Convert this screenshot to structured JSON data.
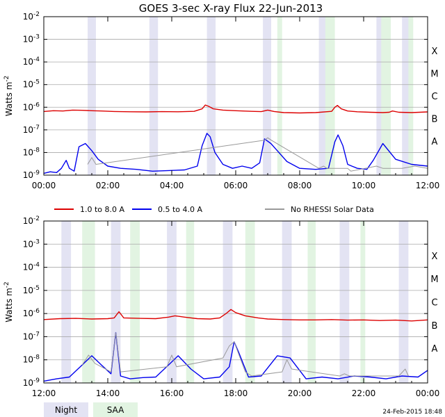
{
  "chart_data": {
    "type": "line",
    "title": "GOES 3-sec X-ray Flux   22-Jun-2013",
    "ylabel": "Watts m",
    "ylabel_sup": "-2",
    "ylim_exponents": [
      -9,
      -2
    ],
    "yticks": [
      "10",
      "10",
      "10",
      "10",
      "10",
      "10",
      "10",
      "10"
    ],
    "ytick_exponents": [
      "-9",
      "-8",
      "-7",
      "-6",
      "-5",
      "-4",
      "-3",
      "-2"
    ],
    "flare_classes": [
      {
        "label": "A",
        "exp": -8
      },
      {
        "label": "B",
        "exp": -7
      },
      {
        "label": "C",
        "exp": -6
      },
      {
        "label": "M",
        "exp": -5
      },
      {
        "label": "X",
        "exp": -4
      }
    ],
    "grid": true,
    "colors": {
      "long": "#dd0000",
      "short": "#0000ee",
      "norhessi": "#999999",
      "night": "#e3e3f3",
      "saa": "#e2f4e2",
      "grid": "#a9a9a9"
    },
    "legend": [
      {
        "label": "1.0 to 8.0 A",
        "color": "#dd0000"
      },
      {
        "label": "0.5 to 4.0 A",
        "color": "#0000ee"
      },
      {
        "label": "No RHESSI Solar Data",
        "color": "#999999"
      }
    ],
    "band_legend": [
      {
        "label": "Night",
        "color": "#e3e3f3"
      },
      {
        "label": "SAA",
        "color": "#e2f4e2"
      }
    ],
    "panels": [
      {
        "xrange": [
          0,
          12
        ],
        "xticks": [
          "00:00",
          "02:00",
          "04:00",
          "06:00",
          "08:00",
          "10:00",
          "12:00"
        ],
        "night": [
          [
            1.37,
            1.63
          ],
          [
            3.3,
            3.57
          ],
          [
            5.1,
            5.37
          ],
          [
            6.85,
            7.11
          ],
          [
            8.6,
            8.85
          ],
          [
            10.4,
            10.65
          ],
          [
            11.2,
            11.45
          ]
        ],
        "saa": [
          [
            7.3,
            7.45
          ],
          [
            8.8,
            9.1
          ],
          [
            10.55,
            10.85
          ],
          [
            11.4,
            11.55
          ]
        ],
        "series": [
          {
            "name": "1.0 to 8.0 A",
            "channel": "long",
            "x": [
              0,
              0.3,
              0.6,
              0.9,
              1.2,
              1.5,
              1.8,
              2.2,
              2.7,
              3.2,
              3.7,
              4.2,
              4.7,
              4.95,
              5.05,
              5.15,
              5.3,
              5.6,
              6.0,
              6.5,
              6.8,
              7.0,
              7.2,
              7.5,
              8.0,
              8.5,
              9.0,
              9.1,
              9.18,
              9.3,
              9.5,
              9.8,
              10.2,
              10.6,
              10.8,
              10.9,
              11.1,
              11.5,
              12.0
            ],
            "y": [
              6.5e-07,
              7e-07,
              6.8e-07,
              7.5e-07,
              7.3e-07,
              7e-07,
              6.8e-07,
              6.5e-07,
              6.3e-07,
              6.2e-07,
              6.4e-07,
              6.3e-07,
              6.6e-07,
              8.5e-07,
              1.25e-06,
              1.1e-06,
              8.5e-07,
              7.5e-07,
              7e-07,
              6.6e-07,
              6.4e-07,
              7.5e-07,
              6.5e-07,
              5.8e-07,
              5.6e-07,
              5.8e-07,
              6.6e-07,
              1e-06,
              1.2e-06,
              8.5e-07,
              6.8e-07,
              6.3e-07,
              6e-07,
              5.8e-07,
              6e-07,
              6.8e-07,
              6e-07,
              5.8e-07,
              6.2e-07
            ]
          },
          {
            "name": "0.5 to 4.0 A",
            "channel": "short",
            "x": [
              0,
              0.2,
              0.4,
              0.55,
              0.7,
              0.8,
              0.95,
              1.1,
              1.3,
              1.5,
              1.7,
              2.0,
              2.4,
              2.9,
              3.4,
              3.9,
              4.4,
              4.8,
              4.95,
              5.1,
              5.2,
              5.35,
              5.6,
              5.9,
              6.2,
              6.5,
              6.75,
              6.9,
              7.1,
              7.3,
              7.6,
              8.0,
              8.5,
              8.9,
              9.1,
              9.2,
              9.35,
              9.5,
              9.8,
              10.1,
              10.3,
              10.6,
              11.0,
              11.5,
              12.0
            ],
            "y": [
              1.2e-09,
              1.4e-09,
              1.3e-09,
              2e-09,
              4.5e-09,
              2e-09,
              1.5e-09,
              1.8e-08,
              2.5e-08,
              1.2e-08,
              5e-09,
              2.5e-09,
              2e-09,
              1.8e-09,
              1.5e-09,
              1.6e-09,
              1.7e-09,
              2.5e-09,
              2e-08,
              7e-08,
              5e-08,
              1e-08,
              3e-09,
              2e-09,
              2.5e-09,
              2e-09,
              3.5e-09,
              4e-08,
              2.5e-08,
              1.2e-08,
              4e-09,
              2e-09,
              1.8e-09,
              2e-09,
              3e-08,
              6e-08,
              2e-08,
              3e-09,
              2e-09,
              1.8e-09,
              4.5e-09,
              2.5e-08,
              5e-09,
              3e-09,
              2.5e-09
            ]
          },
          {
            "name": "No RHESSI Solar Data",
            "channel": "norhessi",
            "x": [
              1.37,
              1.5,
              1.63,
              6.9,
              7.0,
              7.11,
              8.6,
              8.75,
              8.85,
              9.5,
              9.6,
              10.4,
              10.6,
              11.2,
              11.6,
              12.0
            ],
            "y": [
              3e-09,
              6e-09,
              3e-09,
              3.5e-08,
              4.5e-08,
              3.5e-08,
              2e-09,
              2.5e-09,
              2e-09,
              2e-09,
              1.5e-09,
              2.5e-09,
              2e-09,
              2e-09,
              2.5e-09,
              2e-09
            ]
          }
        ]
      },
      {
        "xrange": [
          12,
          24
        ],
        "xticks": [
          "12:00",
          "14:00",
          "16:00",
          "18:00",
          "20:00",
          "22:00",
          "00:00"
        ],
        "night": [
          [
            12.55,
            12.85
          ],
          [
            14.1,
            14.4
          ],
          [
            15.85,
            16.15
          ],
          [
            17.6,
            17.9
          ],
          [
            19.45,
            19.75
          ],
          [
            21.25,
            21.55
          ],
          [
            23.1,
            23.4
          ]
        ],
        "saa": [
          [
            13.2,
            13.6
          ],
          [
            14.7,
            15.0
          ],
          [
            16.45,
            16.7
          ],
          [
            18.3,
            18.6
          ],
          [
            20.25,
            20.5
          ],
          [
            21.9,
            22.05
          ]
        ],
        "series": [
          {
            "name": "1.0 to 8.0 A",
            "channel": "long",
            "x": [
              12.0,
              12.5,
              13.0,
              13.5,
              14.0,
              14.2,
              14.35,
              14.5,
              15.0,
              15.5,
              15.9,
              16.1,
              16.4,
              16.8,
              17.2,
              17.5,
              17.7,
              17.85,
              18.0,
              18.3,
              18.7,
              19.0,
              19.5,
              20.0,
              20.5,
              21.0,
              21.5,
              22.0,
              22.5,
              23.0,
              23.5,
              24.0
            ],
            "y": [
              5.5e-07,
              6e-07,
              6.2e-07,
              5.8e-07,
              6e-07,
              6.5e-07,
              1.2e-06,
              6.5e-07,
              6.2e-07,
              6e-07,
              7e-07,
              8e-07,
              7e-07,
              6e-07,
              5.8e-07,
              6.5e-07,
              1e-06,
              1.5e-06,
              1.1e-06,
              8e-07,
              6.5e-07,
              5.8e-07,
              5.5e-07,
              5.3e-07,
              5.3e-07,
              5.5e-07,
              5.2e-07,
              5.3e-07,
              5e-07,
              5.2e-07,
              4.8e-07,
              5.3e-07
            ]
          },
          {
            "name": "0.5 to 4.0 A",
            "channel": "short",
            "x": [
              12.0,
              12.4,
              12.8,
              13.2,
              13.5,
              13.8,
              14.1,
              14.25,
              14.4,
              14.7,
              15.1,
              15.5,
              15.9,
              16.2,
              16.6,
              17.0,
              17.5,
              17.8,
              17.95,
              18.1,
              18.4,
              18.8,
              19.3,
              19.7,
              20.2,
              20.7,
              21.2,
              21.7,
              22.2,
              22.7,
              23.2,
              23.7,
              24.0
            ],
            "y": [
              1.2e-09,
              1.5e-09,
              1.8e-09,
              6e-09,
              1.5e-08,
              6e-09,
              2.5e-09,
              1.5e-07,
              2e-09,
              1.5e-09,
              1.7e-09,
              1.8e-09,
              6e-09,
              1.5e-08,
              4e-09,
              1.5e-09,
              1.8e-09,
              5e-09,
              6e-08,
              2e-08,
              1.8e-09,
              2e-09,
              1.5e-08,
              1.2e-08,
              1.5e-09,
              1.8e-09,
              1.5e-09,
              2e-09,
              1.8e-09,
              1.5e-09,
              2e-09,
              1.8e-09,
              3.5e-09
            ]
          },
          {
            "name": "No RHESSI Solar Data",
            "channel": "norhessi",
            "x": [
              13.2,
              13.4,
              13.6,
              14.1,
              14.25,
              14.4,
              15.85,
              16.0,
              16.15,
              17.6,
              17.8,
              17.95,
              18.3,
              18.5,
              19.45,
              19.6,
              19.75,
              21.25,
              21.4,
              21.55,
              23.1,
              23.3,
              23.4
            ],
            "y": [
              6e-09,
              1.6e-08,
              7e-09,
              3e-09,
              1.5e-07,
              3e-09,
              5e-09,
              1.6e-08,
              5e-09,
              1.2e-08,
              4e-08,
              6e-08,
              3e-09,
              2e-09,
              3e-09,
              1e-08,
              4e-09,
              2e-09,
              2.5e-09,
              2e-09,
              2e-09,
              4e-09,
              2e-09
            ]
          }
        ]
      }
    ],
    "footer_date": "24-Feb-2015 18:48"
  }
}
